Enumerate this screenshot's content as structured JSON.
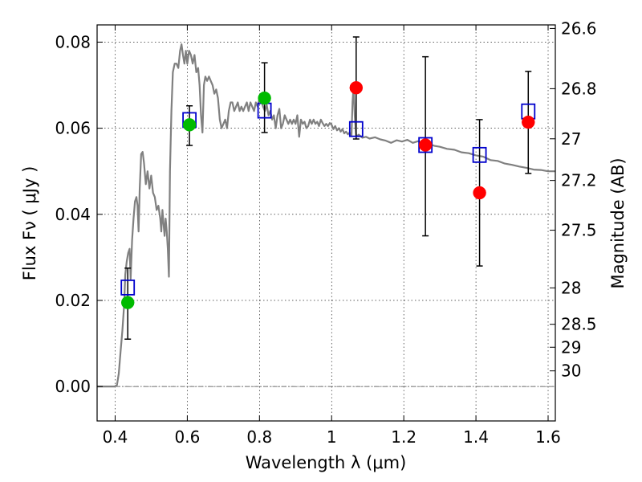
{
  "chart_data": {
    "type": "scatter",
    "title": "",
    "xlabel": "Wavelength  λ (μm)",
    "ylabel": "Flux  Fν  ( μJy )",
    "ylabel_right": "Magnitude (AB)",
    "xlim": [
      0.35,
      1.62
    ],
    "ylim": [
      -0.008,
      0.084
    ],
    "grid": true,
    "x_ticks": [
      {
        "value": 0.4,
        "label": "0.4"
      },
      {
        "value": 0.6,
        "label": "0.6"
      },
      {
        "value": 0.8,
        "label": "0.8"
      },
      {
        "value": 1.0,
        "label": "1"
      },
      {
        "value": 1.2,
        "label": "1.2"
      },
      {
        "value": 1.4,
        "label": "1.4"
      },
      {
        "value": 1.6,
        "label": "1.6"
      }
    ],
    "y_ticks": [
      {
        "value": 0.0,
        "label": "0.00"
      },
      {
        "value": 0.02,
        "label": "0.02"
      },
      {
        "value": 0.04,
        "label": "0.04"
      },
      {
        "value": 0.06,
        "label": "0.06"
      },
      {
        "value": 0.08,
        "label": "0.08"
      }
    ],
    "magnitude_ticks": [
      {
        "value": 26.6,
        "label": "26.6"
      },
      {
        "value": 26.8,
        "label": "26.8"
      },
      {
        "value": 27.0,
        "label": "27"
      },
      {
        "value": 27.2,
        "label": "27.2"
      },
      {
        "value": 27.5,
        "label": "27.5"
      },
      {
        "value": 28.0,
        "label": "28"
      },
      {
        "value": 28.5,
        "label": "28.5"
      },
      {
        "value": 29.0,
        "label": "29"
      },
      {
        "value": 30.0,
        "label": "30"
      }
    ],
    "model_spectrum": {
      "color": "#808080",
      "points": [
        [
          0.35,
          0.0
        ],
        [
          0.398,
          0.0
        ],
        [
          0.405,
          0.0003
        ],
        [
          0.41,
          0.003
        ],
        [
          0.415,
          0.008
        ],
        [
          0.42,
          0.013
        ],
        [
          0.425,
          0.019
        ],
        [
          0.428,
          0.026
        ],
        [
          0.432,
          0.029
        ],
        [
          0.436,
          0.031
        ],
        [
          0.44,
          0.032
        ],
        [
          0.443,
          0.025
        ],
        [
          0.447,
          0.034
        ],
        [
          0.451,
          0.039
        ],
        [
          0.455,
          0.043
        ],
        [
          0.459,
          0.044
        ],
        [
          0.462,
          0.042
        ],
        [
          0.465,
          0.036
        ],
        [
          0.468,
          0.046
        ],
        [
          0.472,
          0.054
        ],
        [
          0.476,
          0.0545
        ],
        [
          0.48,
          0.052
        ],
        [
          0.485,
          0.047
        ],
        [
          0.49,
          0.05
        ],
        [
          0.495,
          0.046
        ],
        [
          0.5,
          0.049
        ],
        [
          0.505,
          0.045
        ],
        [
          0.51,
          0.044
        ],
        [
          0.515,
          0.041
        ],
        [
          0.52,
          0.042
        ],
        [
          0.525,
          0.039
        ],
        [
          0.528,
          0.036
        ],
        [
          0.531,
          0.041
        ],
        [
          0.534,
          0.038
        ],
        [
          0.537,
          0.035
        ],
        [
          0.54,
          0.039
        ],
        [
          0.543,
          0.036
        ],
        [
          0.546,
          0.032
        ],
        [
          0.549,
          0.0255
        ],
        [
          0.552,
          0.05
        ],
        [
          0.556,
          0.064
        ],
        [
          0.56,
          0.073
        ],
        [
          0.565,
          0.075
        ],
        [
          0.57,
          0.075
        ],
        [
          0.575,
          0.074
        ],
        [
          0.58,
          0.078
        ],
        [
          0.584,
          0.0795
        ],
        [
          0.588,
          0.077
        ],
        [
          0.592,
          0.075
        ],
        [
          0.596,
          0.078
        ],
        [
          0.6,
          0.075
        ],
        [
          0.605,
          0.078
        ],
        [
          0.61,
          0.077
        ],
        [
          0.615,
          0.075
        ],
        [
          0.62,
          0.077
        ],
        [
          0.625,
          0.073
        ],
        [
          0.63,
          0.074
        ],
        [
          0.634,
          0.07
        ],
        [
          0.638,
          0.063
        ],
        [
          0.642,
          0.059
        ],
        [
          0.646,
          0.07
        ],
        [
          0.65,
          0.072
        ],
        [
          0.655,
          0.071
        ],
        [
          0.66,
          0.072
        ],
        [
          0.665,
          0.071
        ],
        [
          0.67,
          0.07
        ],
        [
          0.675,
          0.068
        ],
        [
          0.68,
          0.069
        ],
        [
          0.685,
          0.067
        ],
        [
          0.69,
          0.062
        ],
        [
          0.695,
          0.06
        ],
        [
          0.7,
          0.061
        ],
        [
          0.705,
          0.062
        ],
        [
          0.71,
          0.06
        ],
        [
          0.715,
          0.064
        ],
        [
          0.72,
          0.066
        ],
        [
          0.725,
          0.066
        ],
        [
          0.73,
          0.064
        ],
        [
          0.735,
          0.065
        ],
        [
          0.74,
          0.066
        ],
        [
          0.745,
          0.064
        ],
        [
          0.75,
          0.065
        ],
        [
          0.755,
          0.064
        ],
        [
          0.76,
          0.065
        ],
        [
          0.765,
          0.066
        ],
        [
          0.77,
          0.064
        ],
        [
          0.775,
          0.066
        ],
        [
          0.78,
          0.065
        ],
        [
          0.785,
          0.064
        ],
        [
          0.79,
          0.066
        ],
        [
          0.795,
          0.065
        ],
        [
          0.8,
          0.067
        ],
        [
          0.805,
          0.0665
        ],
        [
          0.81,
          0.065
        ],
        [
          0.815,
          0.064
        ],
        [
          0.82,
          0.0655
        ],
        [
          0.825,
          0.063
        ],
        [
          0.83,
          0.064
        ],
        [
          0.835,
          0.062
        ],
        [
          0.84,
          0.063
        ],
        [
          0.845,
          0.06
        ],
        [
          0.85,
          0.063
        ],
        [
          0.855,
          0.0645
        ],
        [
          0.86,
          0.06
        ],
        [
          0.865,
          0.061
        ],
        [
          0.87,
          0.063
        ],
        [
          0.875,
          0.062
        ],
        [
          0.88,
          0.061
        ],
        [
          0.885,
          0.062
        ],
        [
          0.89,
          0.061
        ],
        [
          0.895,
          0.062
        ],
        [
          0.9,
          0.061
        ],
        [
          0.905,
          0.063
        ],
        [
          0.91,
          0.058
        ],
        [
          0.915,
          0.062
        ],
        [
          0.92,
          0.061
        ],
        [
          0.925,
          0.0615
        ],
        [
          0.93,
          0.06
        ],
        [
          0.935,
          0.0605
        ],
        [
          0.94,
          0.062
        ],
        [
          0.945,
          0.061
        ],
        [
          0.95,
          0.062
        ],
        [
          0.955,
          0.061
        ],
        [
          0.96,
          0.0615
        ],
        [
          0.965,
          0.0605
        ],
        [
          0.97,
          0.062
        ],
        [
          0.975,
          0.0612
        ],
        [
          0.98,
          0.0605
        ],
        [
          0.985,
          0.061
        ],
        [
          0.99,
          0.0605
        ],
        [
          0.995,
          0.0612
        ],
        [
          1.0,
          0.0608
        ],
        [
          1.005,
          0.0598
        ],
        [
          1.01,
          0.0605
        ],
        [
          1.015,
          0.0595
        ],
        [
          1.02,
          0.06
        ],
        [
          1.025,
          0.0592
        ],
        [
          1.03,
          0.0598
        ],
        [
          1.035,
          0.0588
        ],
        [
          1.04,
          0.0592
        ],
        [
          1.045,
          0.0586
        ],
        [
          1.05,
          0.059
        ],
        [
          1.055,
          0.0583
        ],
        [
          1.058,
          0.066
        ],
        [
          1.061,
          0.07
        ],
        [
          1.064,
          0.063
        ],
        [
          1.068,
          0.058
        ],
        [
          1.075,
          0.0585
        ],
        [
          1.085,
          0.0578
        ],
        [
          1.095,
          0.058
        ],
        [
          1.105,
          0.0576
        ],
        [
          1.12,
          0.0579
        ],
        [
          1.135,
          0.0574
        ],
        [
          1.15,
          0.0571
        ],
        [
          1.165,
          0.0566
        ],
        [
          1.18,
          0.0572
        ],
        [
          1.195,
          0.0569
        ],
        [
          1.21,
          0.0573
        ],
        [
          1.225,
          0.0566
        ],
        [
          1.24,
          0.057
        ],
        [
          1.255,
          0.0562
        ],
        [
          1.27,
          0.0564
        ],
        [
          1.285,
          0.0559
        ],
        [
          1.3,
          0.0557
        ],
        [
          1.32,
          0.0552
        ],
        [
          1.34,
          0.055
        ],
        [
          1.36,
          0.0544
        ],
        [
          1.38,
          0.0542
        ],
        [
          1.4,
          0.0537
        ],
        [
          1.42,
          0.0534
        ],
        [
          1.44,
          0.0526
        ],
        [
          1.46,
          0.0524
        ],
        [
          1.48,
          0.0518
        ],
        [
          1.5,
          0.0515
        ],
        [
          1.52,
          0.0511
        ],
        [
          1.54,
          0.0508
        ],
        [
          1.56,
          0.0504
        ],
        [
          1.58,
          0.0503
        ],
        [
          1.6,
          0.05
        ],
        [
          1.62,
          0.05
        ]
      ]
    },
    "measurements": [
      {
        "x": 0.435,
        "y": 0.0195,
        "err_low": 0.011,
        "err_high": 0.0275,
        "color": "#00bb00"
      },
      {
        "x": 0.606,
        "y": 0.0608,
        "err_low": 0.056,
        "err_high": 0.0652,
        "color": "#00bb00"
      },
      {
        "x": 0.814,
        "y": 0.067,
        "err_low": 0.059,
        "err_high": 0.0752,
        "color": "#00bb00"
      },
      {
        "x": 1.068,
        "y": 0.0694,
        "err_low": 0.0575,
        "err_high": 0.0812,
        "color": "#ff0000"
      },
      {
        "x": 1.26,
        "y": 0.0561,
        "err_low": 0.035,
        "err_high": 0.0766,
        "color": "#ff0000"
      },
      {
        "x": 1.41,
        "y": 0.045,
        "err_low": 0.028,
        "err_high": 0.062,
        "color": "#ff0000"
      },
      {
        "x": 1.545,
        "y": 0.0614,
        "err_low": 0.0495,
        "err_high": 0.0732,
        "color": "#ff0000"
      }
    ],
    "model_fluxes": {
      "color": "#0000cc",
      "points": [
        {
          "x": 0.435,
          "y": 0.023
        },
        {
          "x": 0.606,
          "y": 0.0619
        },
        {
          "x": 0.814,
          "y": 0.0641
        },
        {
          "x": 1.068,
          "y": 0.0598
        },
        {
          "x": 1.26,
          "y": 0.0561
        },
        {
          "x": 1.41,
          "y": 0.0538
        },
        {
          "x": 1.545,
          "y": 0.0639
        }
      ]
    }
  }
}
